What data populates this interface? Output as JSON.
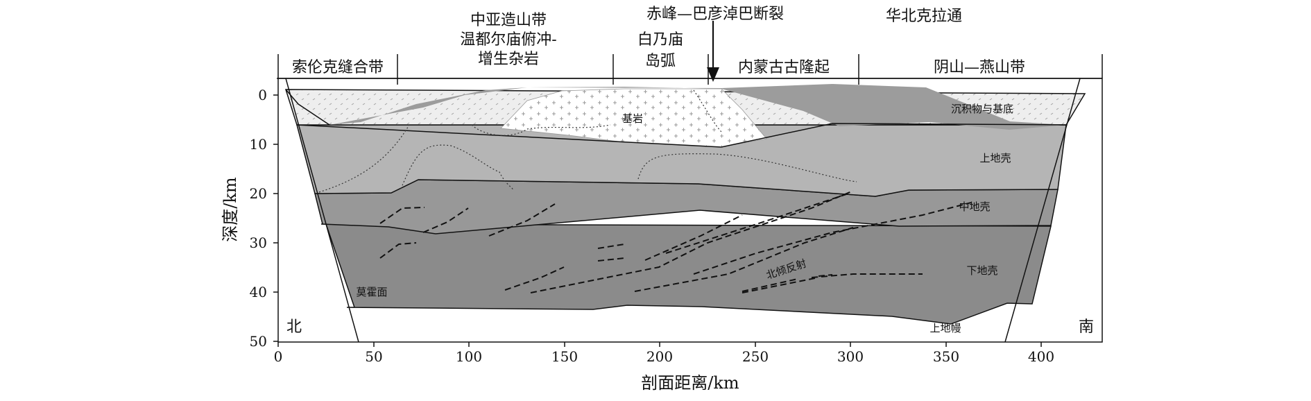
{
  "top_labels": {
    "central_asia_orogen": "中亚造山带",
    "wendurmiao": "温都尔庙俯冲-",
    "accretion": "增生杂岩",
    "chifeng_fault": "赤峰—巴彦淖巴断裂",
    "north_china": "华北克拉通",
    "bainaimiao_1": "白乃庙",
    "bainaimiao_2": "岛弧"
  },
  "tectonic_units": {
    "solonker": "索伦克缝合带",
    "inner_mongolia": "内蒙古古隆起",
    "yinshan": "阴山—燕山带"
  },
  "layers": {
    "sediments": "沉积物与基底",
    "bedrock": "基岩",
    "upper_crust": "上地壳",
    "middle_crust": "中地壳",
    "lower_crust": "下地壳",
    "upper_mantle": "上地幔",
    "moho": "莫霍面",
    "north_dipping": "北倾反射"
  },
  "orientation": {
    "north": "北",
    "south": "南"
  },
  "axes": {
    "xlabel": "剖面距离/km",
    "ylabel": "深度/km",
    "x_ticks": [
      "0",
      "50",
      "100",
      "150",
      "200",
      "250",
      "300",
      "350",
      "400"
    ],
    "y_ticks": [
      "0",
      "10",
      "20",
      "30",
      "40",
      "50"
    ]
  },
  "colors": {
    "sediment": "#ececec",
    "upper_crust": "#b5b5b5",
    "middle_crust": "#979797",
    "lower_crust": "#8a8a8a",
    "basement": "#9d9d9d",
    "granite": "#ffffff"
  }
}
